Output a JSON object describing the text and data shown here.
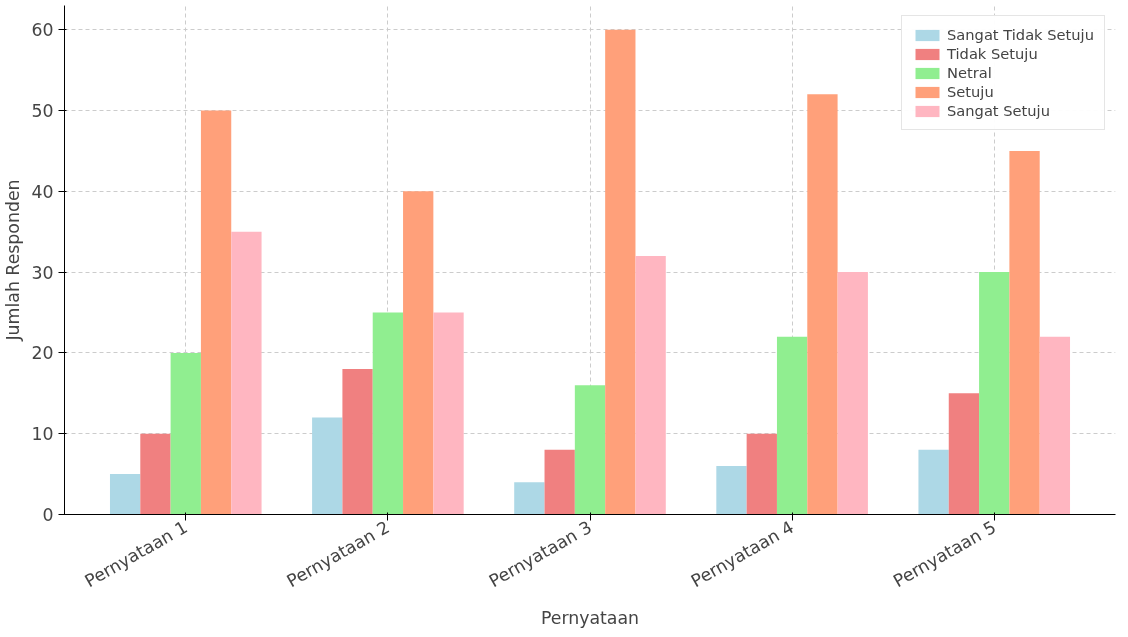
{
  "chart_data": {
    "type": "bar",
    "xlabel": "Pernyataan",
    "ylabel": "Jumlah Responden",
    "categories": [
      "Pernyataan 1",
      "Pernyataan 2",
      "Pernyataan 3",
      "Pernyataan 4",
      "Pernyataan 5"
    ],
    "series": [
      {
        "name": "Sangat Tidak Setuju",
        "color": "#add8e6",
        "values": [
          5,
          12,
          4,
          6,
          8
        ]
      },
      {
        "name": "Tidak Setuju",
        "color": "#f08080",
        "values": [
          10,
          18,
          8,
          10,
          15
        ]
      },
      {
        "name": "Netral",
        "color": "#90ee90",
        "values": [
          20,
          25,
          16,
          22,
          30
        ]
      },
      {
        "name": "Setuju",
        "color": "#ffa07a",
        "values": [
          50,
          40,
          60,
          52,
          45
        ]
      },
      {
        "name": "Sangat Setuju",
        "color": "#ffb6c1",
        "values": [
          35,
          25,
          32,
          30,
          22
        ]
      }
    ],
    "ylim": [
      0,
      63
    ],
    "yticks": [
      0,
      10,
      20,
      30,
      40,
      50,
      60
    ],
    "grid": true,
    "legend": "top right"
  }
}
